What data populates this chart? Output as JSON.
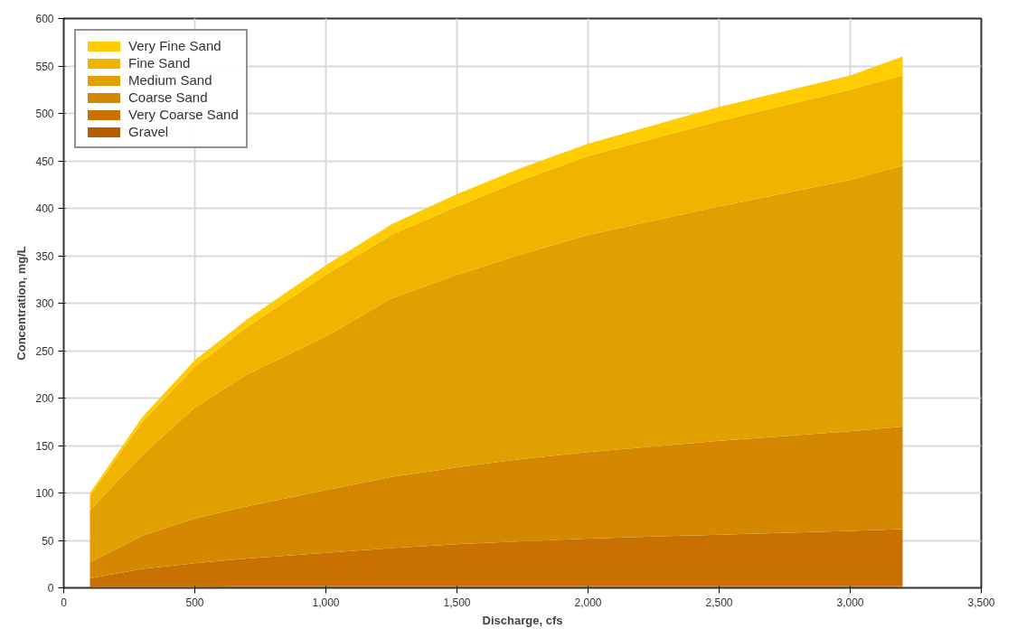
{
  "chart_data": {
    "type": "area",
    "stacked": true,
    "xlabel": "Discharge, cfs",
    "ylabel": "Concentration, mg/L",
    "x": [
      100,
      300,
      500,
      700,
      1000,
      1250,
      1500,
      1750,
      2000,
      2500,
      3000,
      3200
    ],
    "series": [
      {
        "name": "Gravel",
        "color": "#b85c00",
        "values": [
          1,
          1,
          1,
          2,
          2,
          2,
          2,
          2,
          2,
          2,
          2,
          2
        ]
      },
      {
        "name": "Very Coarse Sand",
        "color": "#c87000",
        "values": [
          9,
          19,
          25,
          29,
          35,
          40,
          44,
          47,
          50,
          54,
          58,
          60
        ]
      },
      {
        "name": "Coarse Sand",
        "color": "#d48800",
        "values": [
          17,
          35,
          47,
          55,
          66,
          75,
          81,
          87,
          91,
          99,
          105,
          108
        ]
      },
      {
        "name": "Medium Sand",
        "color": "#e0a000",
        "values": [
          55,
          85,
          117,
          139,
          162,
          188,
          203,
          216,
          229,
          247,
          265,
          275
        ]
      },
      {
        "name": "Fine Sand",
        "color": "#f0b400",
        "values": [
          15,
          35,
          43,
          50,
          65,
          67,
          72,
          78,
          83,
          90,
          95,
          95
        ]
      },
      {
        "name": "Very Fine Sand",
        "color": "#ffcc00",
        "values": [
          3,
          5,
          7,
          8,
          10,
          11,
          13,
          13,
          13,
          15,
          15,
          20
        ]
      }
    ],
    "xlim": [
      0,
      3500
    ],
    "ylim": [
      0,
      600
    ],
    "xticks": [
      0,
      500,
      {
        "value": 1000,
        "label": "1,000"
      },
      {
        "value": 1500,
        "label": "1,500"
      },
      {
        "value": 2000,
        "label": "2,000"
      },
      {
        "value": 2500,
        "label": "2,500"
      },
      {
        "value": 3000,
        "label": "3,000"
      },
      {
        "value": 3500,
        "label": "3,500"
      }
    ],
    "yticks": [
      0,
      50,
      100,
      150,
      200,
      250,
      300,
      350,
      400,
      450,
      500,
      550,
      600
    ],
    "grid": true,
    "legend": "top left"
  }
}
